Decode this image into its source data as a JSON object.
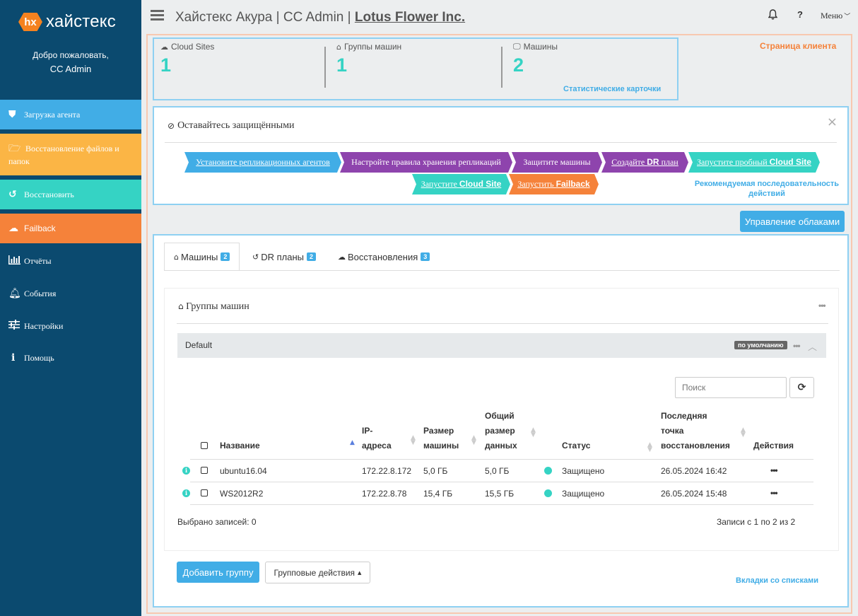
{
  "brand": {
    "logo_mark": "hx",
    "logo_text": "хайстекс"
  },
  "sidebar": {
    "welcome": "Добро пожаловать,",
    "user": "CC Admin",
    "items": [
      {
        "label": "Загрузка агента",
        "icon": "shield-icon"
      },
      {
        "label": "Восстановление файлов и папок",
        "icon": "folder-open-icon"
      },
      {
        "label": "Восстановить",
        "icon": "undo-icon"
      },
      {
        "label": "Failback",
        "icon": "cloud-download-icon"
      },
      {
        "label": "Отчёты",
        "icon": "bar-chart-icon"
      },
      {
        "label": "События",
        "icon": "bell-icon"
      },
      {
        "label": "Настройки",
        "icon": "sliders-icon"
      },
      {
        "label": "Помощь",
        "icon": "info-icon"
      }
    ]
  },
  "header": {
    "app": "Хайстекс Акура",
    "sep": "|",
    "role": "CC Admin",
    "company": "Lotus Flower Inc.",
    "help": "?",
    "menu": "Меню"
  },
  "annotations": {
    "client_page": "Страница клиента",
    "stat_cards": "Статистические карточки",
    "recommended_sequence": "Рекомендуемая последовательность действий",
    "list_tabs": "Вкладки со списками"
  },
  "stats": [
    {
      "label": "Cloud Sites",
      "value": "1",
      "icon": "cloud-icon"
    },
    {
      "label": "Группы машин",
      "value": "1",
      "icon": "home-icon"
    },
    {
      "label": "Машины",
      "value": "2",
      "icon": "monitor-icon"
    }
  ],
  "wizard": {
    "title": "Оставайтесь защищёнными",
    "close": "×",
    "steps": [
      {
        "label": "Установите репликационных агентов"
      },
      {
        "label": "Настройте правила хранения репликаций"
      },
      {
        "label": "Защитите машины"
      },
      {
        "label_a": "Создайте ",
        "label_b": "DR",
        "label_c": " план"
      },
      {
        "label_a": "Запустите пробный ",
        "label_b": "Cloud Site"
      },
      {
        "label_a": "Запустите ",
        "label_b": "Cloud Site"
      },
      {
        "label_a": "Запустить ",
        "label_b": "Failback"
      }
    ]
  },
  "manage_clouds": "Управление облаками",
  "tabs": [
    {
      "label": "Машины",
      "count": "2"
    },
    {
      "label": "DR планы",
      "count": "2"
    },
    {
      "label": "Восстановления",
      "count": "3"
    }
  ],
  "panel": {
    "title": "Группы машин",
    "more": "•••"
  },
  "group": {
    "name": "Default",
    "badge": "по умолчанию",
    "more": "•••"
  },
  "search": {
    "placeholder": "Поиск",
    "value": ""
  },
  "table": {
    "columns": {
      "name": "Название",
      "ip_1": "IP-",
      "ip_2": "адреса",
      "size_1": "Размер",
      "size_2": "машины",
      "total_1": "Общий",
      "total_2": "размер",
      "total_3": "данных",
      "status": "Статус",
      "restore_1": "Последняя",
      "restore_2": "точка",
      "restore_3": "восстановления",
      "actions": "Действия"
    },
    "rows": [
      {
        "name": "ubuntu16.04",
        "ip": "172.22.8.172",
        "size": "5,0 ГБ",
        "total": "5,0 ГБ",
        "status": "Защищено",
        "restore": "26.05.2024 16:42",
        "actions": "•••"
      },
      {
        "name": "WS2012R2",
        "ip": "172.22.8.78",
        "size": "15,4 ГБ",
        "total": "15,5 ГБ",
        "status": "Защищено",
        "restore": "26.05.2024 15:48",
        "actions": "•••"
      }
    ],
    "selected": "Выбрано записей: 0",
    "records": "Записи с 1 по 2 из 2"
  },
  "buttons": {
    "add_group": "Добавить группу",
    "group_actions": "Групповые действия"
  },
  "colors": {
    "accent": "#41ade6",
    "teal": "#35d3c4",
    "orange": "#f5823a",
    "purple": "#8e44ad",
    "yellow": "#fbb545",
    "sidebar": "#0b4a6f"
  }
}
